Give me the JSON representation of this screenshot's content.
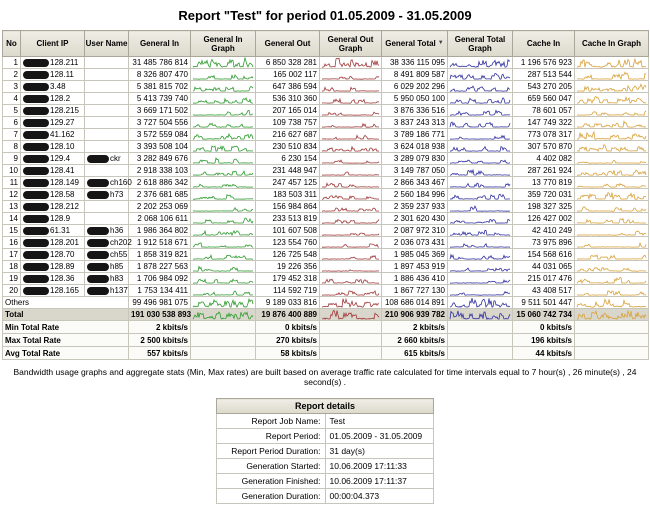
{
  "title": "Report \"Test\" for period 01.05.2009 - 31.05.2009",
  "table": {
    "columns": [
      {
        "label": "No"
      },
      {
        "label": "Client IP"
      },
      {
        "label": "User Name"
      },
      {
        "label": "General In"
      },
      {
        "label": "General In Graph"
      },
      {
        "label": "General Out"
      },
      {
        "label": "General Out Graph"
      },
      {
        "label": "General Total",
        "sorted": true
      },
      {
        "label": "General Total Graph"
      },
      {
        "label": "Cache In"
      },
      {
        "label": "Cache In Graph"
      }
    ],
    "sort_indicator": "▼",
    "rows": [
      {
        "no": "1",
        "ip_visible": "128.211",
        "user_visible": "",
        "general_in": "31 485 786 814",
        "general_out": "6 850 328 281",
        "general_total": "38 336 115 095",
        "cache_in": "1 196 576 923"
      },
      {
        "no": "2",
        "ip_visible": "128.11",
        "user_visible": "",
        "general_in": "8 326 807 470",
        "general_out": "165 002 117",
        "general_total": "8 491 809 587",
        "cache_in": "287 513 544"
      },
      {
        "no": "3",
        "ip_visible": "3.48",
        "user_visible": "",
        "general_in": "5 381 815 702",
        "general_out": "647 386 594",
        "general_total": "6 029 202 296",
        "cache_in": "543 270 205"
      },
      {
        "no": "4",
        "ip_visible": "128.2",
        "user_visible": "",
        "general_in": "5 413 739 740",
        "general_out": "536 310 360",
        "general_total": "5 950 050 100",
        "cache_in": "659 560 047"
      },
      {
        "no": "5",
        "ip_visible": "128.215",
        "user_visible": "",
        "general_in": "3 669 171 502",
        "general_out": "207 165 014",
        "general_total": "3 876 336 516",
        "cache_in": "78 601 057"
      },
      {
        "no": "6",
        "ip_visible": "129.27",
        "user_visible": "",
        "general_in": "3 727 504 556",
        "general_out": "109 738 757",
        "general_total": "3 837 243 313",
        "cache_in": "147 749 322"
      },
      {
        "no": "7",
        "ip_visible": "41.162",
        "user_visible": "",
        "general_in": "3 572 559 084",
        "general_out": "216 627 687",
        "general_total": "3 789 186 771",
        "cache_in": "773 078 317"
      },
      {
        "no": "8",
        "ip_visible": "128.10",
        "user_visible": "",
        "general_in": "3 393 508 104",
        "general_out": "230 510 834",
        "general_total": "3 624 018 938",
        "cache_in": "307 570 870"
      },
      {
        "no": "9",
        "ip_visible": "129.4",
        "user_visible": "ckr",
        "general_in": "3 282 849 676",
        "general_out": "6 230 154",
        "general_total": "3 289 079 830",
        "cache_in": "4 402 082"
      },
      {
        "no": "10",
        "ip_visible": "128.41",
        "user_visible": "",
        "general_in": "2 918 338 103",
        "general_out": "231 448 947",
        "general_total": "3 149 787 050",
        "cache_in": "287 261 924"
      },
      {
        "no": "11",
        "ip_visible": "128.149",
        "user_visible": "ch160",
        "general_in": "2 618 886 342",
        "general_out": "247 457 125",
        "general_total": "2 866 343 467",
        "cache_in": "13 770 819"
      },
      {
        "no": "12",
        "ip_visible": "128.58",
        "user_visible": "h73",
        "general_in": "2 376 681 685",
        "general_out": "183 503 311",
        "general_total": "2 560 184 996",
        "cache_in": "359 720 031"
      },
      {
        "no": "13",
        "ip_visible": "128.212",
        "user_visible": "",
        "general_in": "2 202 253 069",
        "general_out": "156 984 864",
        "general_total": "2 359 237 933",
        "cache_in": "198 327 325"
      },
      {
        "no": "14",
        "ip_visible": "128.9",
        "user_visible": "",
        "general_in": "2 068 106 611",
        "general_out": "233 513 819",
        "general_total": "2 301 620 430",
        "cache_in": "126 427 002"
      },
      {
        "no": "15",
        "ip_visible": "61.31",
        "user_visible": "h36",
        "general_in": "1 986 364 802",
        "general_out": "101 607 508",
        "general_total": "2 087 972 310",
        "cache_in": "42 410 249"
      },
      {
        "no": "16",
        "ip_visible": "128.201",
        "user_visible": "ch202",
        "general_in": "1 912 518 671",
        "general_out": "123 554 760",
        "general_total": "2 036 073 431",
        "cache_in": "73 975 896"
      },
      {
        "no": "17",
        "ip_visible": "128.70",
        "user_visible": "ch55",
        "general_in": "1 858 319 821",
        "general_out": "126 725 548",
        "general_total": "1 985 045 369",
        "cache_in": "154 568 616"
      },
      {
        "no": "18",
        "ip_visible": "128.89",
        "user_visible": "h85",
        "general_in": "1 878 227 563",
        "general_out": "19 226 356",
        "general_total": "1 897 453 919",
        "cache_in": "44 031 065"
      },
      {
        "no": "19",
        "ip_visible": "128.36",
        "user_visible": "h83",
        "general_in": "1 706 984 092",
        "general_out": "179 452 318",
        "general_total": "1 886 436 410",
        "cache_in": "215 017 476"
      },
      {
        "no": "20",
        "ip_visible": "128.165",
        "user_visible": "h137",
        "general_in": "1 753 134 411",
        "general_out": "114 592 719",
        "general_total": "1 867 727 130",
        "cache_in": "43 408 517"
      }
    ],
    "others_row": {
      "label": "Others",
      "general_in": "99 496 981 075",
      "general_out": "9 189 033 816",
      "general_total": "108 686 014 891",
      "cache_in": "9 511 501 447"
    },
    "total_row": {
      "label": "Total",
      "general_in": "191 030 538 893",
      "general_out": "19 876 400 889",
      "general_total": "210 906 939 782",
      "cache_in": "15 060 742 734"
    },
    "stat_rows": [
      {
        "label": "Min Total Rate",
        "general_in": "2 kbits/s",
        "general_out": "0 kbits/s",
        "general_total": "2 kbits/s",
        "cache_in": "0 kbits/s"
      },
      {
        "label": "Max Total Rate",
        "general_in": "2 500 kbits/s",
        "general_out": "270 kbits/s",
        "general_total": "2 660 kbits/s",
        "cache_in": "196 kbits/s"
      },
      {
        "label": "Avg Total Rate",
        "general_in": "557 kbits/s",
        "general_out": "58 kbits/s",
        "general_total": "615 kbits/s",
        "cache_in": "44 kbits/s"
      }
    ]
  },
  "graph_colors": {
    "general_in": "#2e9b2e",
    "general_out": "#a03838",
    "general_total": "#3030a0",
    "cache_in": "#d9a13a"
  },
  "note": "Bandwidth usage graphs and aggregate stats (Min, Max rates) are built based on average traffic rate calculated for time intervals equal to 7 hour(s) , 26 minute(s) , 24 second(s) .",
  "details": {
    "title": "Report details",
    "rows": [
      {
        "label": "Report Job Name:",
        "value": "Test"
      },
      {
        "label": "Report Period:",
        "value": "01.05.2009 - 31.05.2009"
      },
      {
        "label": "Report Period Duration:",
        "value": "31 day(s)"
      },
      {
        "label": "Generation Started:",
        "value": "10.06.2009 17:11:33"
      },
      {
        "label": "Generation Finished:",
        "value": "10.06.2009 17:11:37"
      },
      {
        "label": "Generation Duration:",
        "value": "00:00:04.373"
      }
    ]
  }
}
